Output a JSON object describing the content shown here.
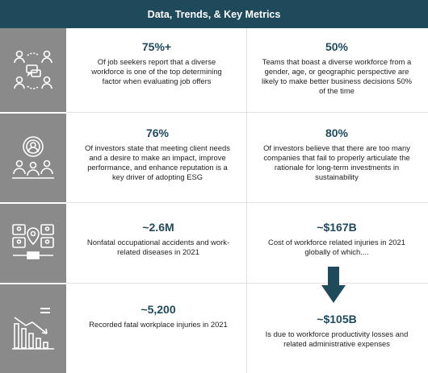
{
  "header": {
    "title": "Data, Trends, & Key Metrics"
  },
  "rows": [
    {
      "icon": "team-network-icon",
      "left": {
        "metric": "75%+",
        "text": "Of job seekers report that a diverse workforce is one of the top determining factor when evaluating job offers"
      },
      "right": {
        "metric": "50%",
        "text": "Teams that boast a diverse workforce from a gender, age, or geographic perspective are likely to make better business decisions 50% of the time"
      }
    },
    {
      "icon": "investors-target-icon",
      "left": {
        "metric": "76%",
        "text": "Of investors state that meeting client needs and a desire to make an impact, improve performance, and enhance reputation is a key driver of adopting ESG"
      },
      "right": {
        "metric": "80%",
        "text": "Of investors believe that there are too many companies that fail to properly articulate the rationale for long-term investments in sustainability"
      }
    },
    {
      "icon": "worker-location-icon",
      "left": {
        "metric": "~2.6M",
        "text": "Nonfatal occupational accidents and work-related diseases in 2021"
      },
      "right": {
        "metric": "~$167B",
        "text": "Cost of workforce related injuries in 2021 globally of which...."
      }
    },
    {
      "icon": "declining-chart-icon",
      "left": {
        "metric": "~5,200",
        "text": "Recorded fatal workplace injuries in 2021"
      },
      "right": {
        "metric": "~$105B",
        "text": "Is due to workforce productivity losses and related administrative expenses"
      }
    }
  ],
  "colors": {
    "header_bg": "#1f4a5c",
    "icon_col": "#8a8a8a",
    "metric": "#1f4a5c"
  }
}
